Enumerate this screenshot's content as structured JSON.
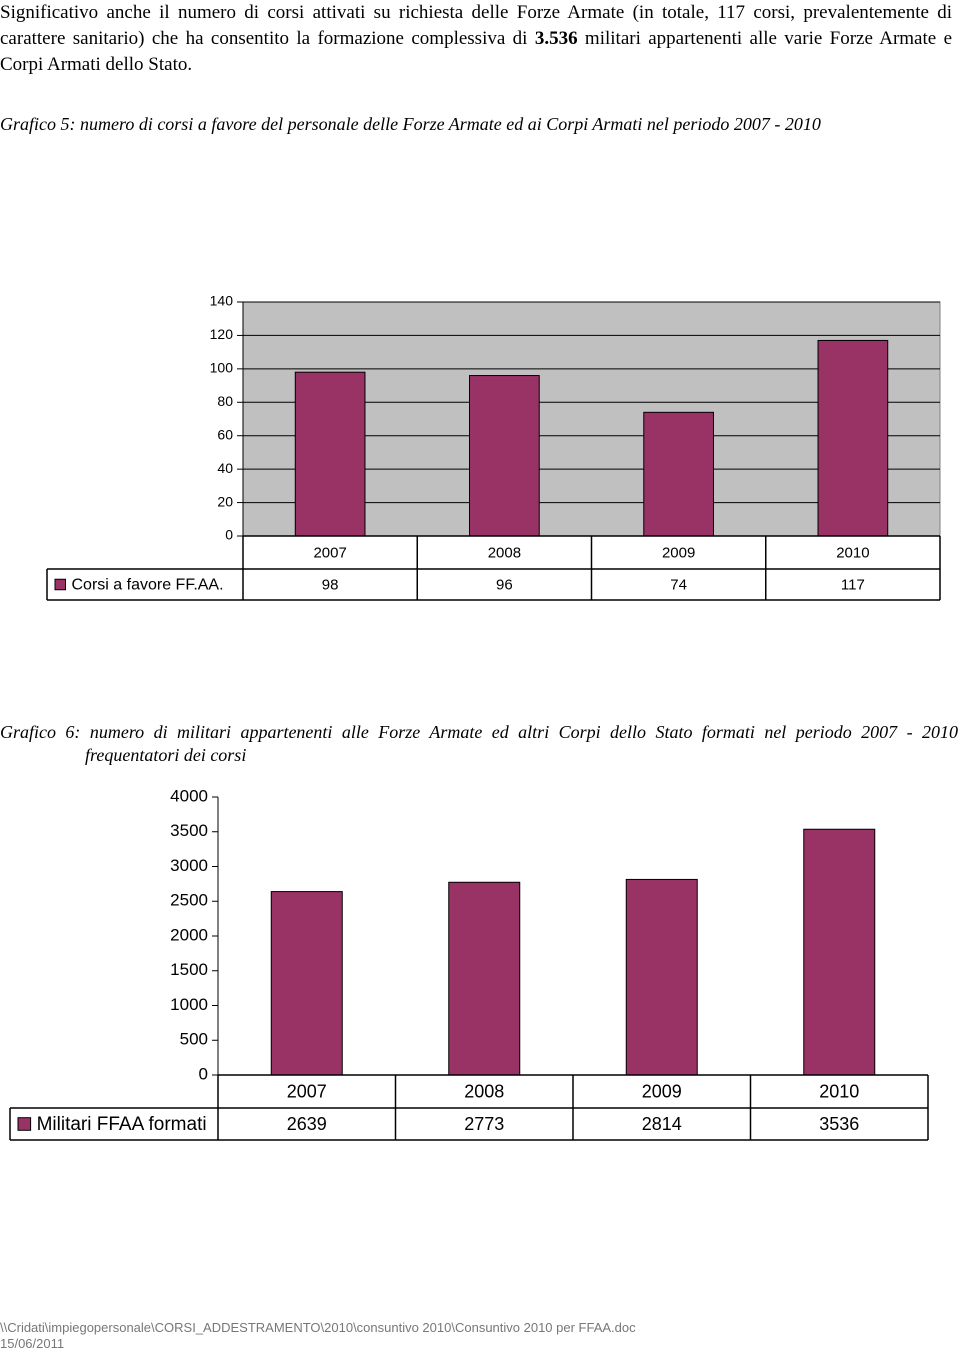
{
  "paragraph": {
    "before": "Significativo anche il numero di corsi attivati su richiesta delle Forze Armate (in totale, 117 corsi, prevalentemente di carattere sanitario) che ha consentito la formazione complessiva di ",
    "bold": "3.536",
    "after": " militari appartenenti alle varie Forze Armate e Corpi Armati dello Stato."
  },
  "chart_data": [
    {
      "type": "bar",
      "title": "Grafico 5: numero di corsi a favore del personale delle Forze Armate ed ai Corpi Armati nel periodo 2007 - 2010",
      "categories": [
        "2007",
        "2008",
        "2009",
        "2010"
      ],
      "series": [
        {
          "name": "Corsi a favore FF.AA.",
          "color": "#993366",
          "values": [
            98,
            96,
            74,
            117
          ]
        }
      ],
      "ylim": [
        0,
        140
      ],
      "yticks": [
        0,
        20,
        40,
        60,
        80,
        100,
        120,
        140
      ],
      "grid": true,
      "plot_background": "#c0c0c0"
    },
    {
      "type": "bar",
      "title": "Grafico 6: numero di militari appartenenti alle Forze Armate ed altri Corpi dello Stato formati nel periodo 2007 - 2010 frequentatori dei corsi",
      "categories": [
        "2007",
        "2008",
        "2009",
        "2010"
      ],
      "series": [
        {
          "name": "Militari FFAA formati",
          "color": "#993366",
          "values": [
            2639,
            2773,
            2814,
            3536
          ]
        }
      ],
      "ylim": [
        0,
        4000
      ],
      "yticks": [
        0,
        500,
        1000,
        1500,
        2000,
        2500,
        3000,
        3500,
        4000
      ],
      "grid": false,
      "plot_background": "#ffffff"
    }
  ],
  "footer": {
    "path": "\\\\Cridati\\impiegopersonale\\CORSI_ADDESTRAMENTO\\2010\\consuntivo 2010\\Consuntivo 2010 per FFAA.doc",
    "date": "15/06/2011"
  }
}
